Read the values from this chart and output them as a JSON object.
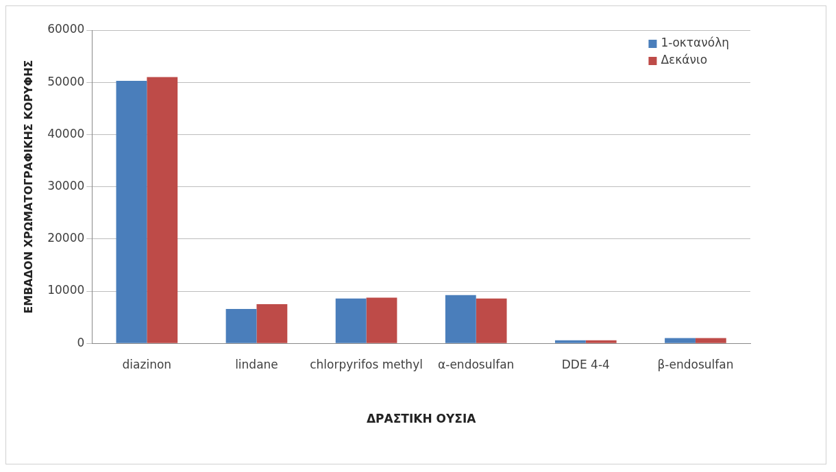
{
  "chart_data": {
    "type": "bar",
    "xlabel": "ΔΡΑΣΤΙΚΗ ΟΥΣΙΑ",
    "ylabel": "ΕΜΒΑΔΟΝ ΧΡΩΜΑΤΟΓΡΑΦΙΚΗΣ ΚΟΡΥΦΗΣ",
    "categories": [
      "diazinon",
      "lindane",
      "chlorpyrifos methyl",
      "α-endosulfan",
      "DDE 4-4",
      "β-endosulfan"
    ],
    "series": [
      {
        "name": "1-οκτανόλη",
        "color": "#4a7ebb",
        "values": [
          50300,
          6600,
          8600,
          9250,
          600,
          1000
        ]
      },
      {
        "name": "Δεκάνιο",
        "color": "#be4b48",
        "values": [
          51000,
          7500,
          8750,
          8600,
          600,
          1000
        ]
      }
    ],
    "ylim": [
      0,
      60000
    ],
    "yticks": [
      0,
      10000,
      20000,
      30000,
      40000,
      50000,
      60000
    ],
    "grid": "y",
    "legend": "top right"
  }
}
